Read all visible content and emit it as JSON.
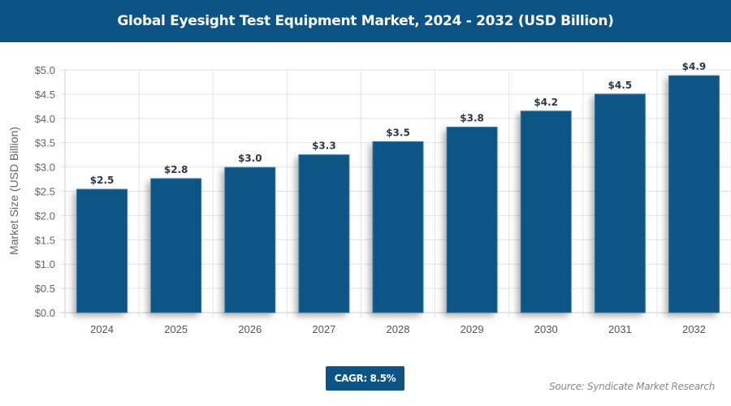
{
  "header": {
    "title": "Global Eyesight Test Equipment Market, 2024 - 2032 (USD Billion)"
  },
  "chart_data": {
    "type": "bar",
    "title": "Global Eyesight Test Equipment Market, 2024 - 2032 (USD Billion)",
    "xlabel": "",
    "ylabel": "Market Size (USD Billion)",
    "categories": [
      "2024",
      "2025",
      "2026",
      "2027",
      "2028",
      "2029",
      "2030",
      "2031",
      "2032"
    ],
    "values": [
      2.54,
      2.76,
      2.99,
      3.25,
      3.52,
      3.82,
      4.15,
      4.5,
      4.88
    ],
    "data_labels": [
      "$2.5",
      "$2.8",
      "$3.0",
      "$3.3",
      "$3.5",
      "$3.8",
      "$4.2",
      "$4.5",
      "$4.9"
    ],
    "ylim": [
      0,
      5
    ],
    "yticks": [
      "$0.0",
      "$0.5",
      "$1.0",
      "$1.5",
      "$2.0",
      "$2.5",
      "$3.0",
      "$3.5",
      "$4.0",
      "$4.5",
      "$5.0"
    ],
    "grid": true,
    "bar_color": "#0b5485"
  },
  "footer": {
    "cagr": "CAGR: 8.5%",
    "source": "Source: Syndicate Market Research"
  }
}
